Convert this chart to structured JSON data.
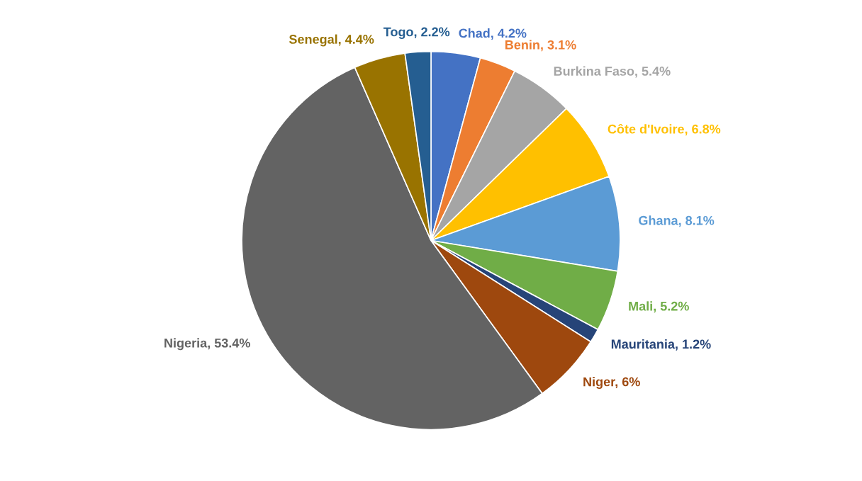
{
  "chart_data": {
    "type": "pie",
    "categories": [
      "Chad",
      "Benin",
      "Burkina Faso",
      "Côte d'Ivoire",
      "Ghana",
      "Mali",
      "Mauritania",
      "Niger",
      "Nigeria",
      "Senegal",
      "Togo"
    ],
    "values": [
      4.2,
      3.1,
      5.4,
      6.8,
      8.1,
      5.2,
      1.2,
      6,
      53.4,
      4.4,
      2.2
    ],
    "value_labels": [
      "4.2%",
      "3.1%",
      "5.4%",
      "6.8%",
      "8.1%",
      "5.2%",
      "1.2%",
      "6%",
      "53.4%",
      "4.4%",
      "2.2%"
    ],
    "colors": [
      "#4472c4",
      "#ed7d31",
      "#a5a5a5",
      "#ffc000",
      "#5b9bd5",
      "#70ad47",
      "#264478",
      "#9e480e",
      "#636363",
      "#997300",
      "#255e91"
    ],
    "legend": false
  }
}
